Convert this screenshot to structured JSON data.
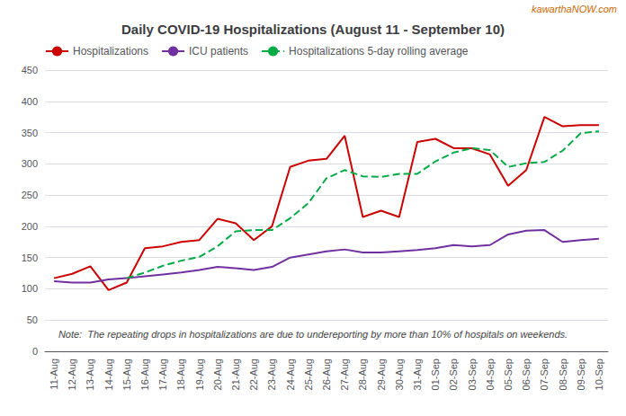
{
  "chart_data": {
    "type": "line",
    "title": "Daily COVID-19 Hospitalizations (August 11 - September 10)",
    "annotations": [
      "Note:  The repeating drops in hospitalizations are due to undereporting by more than 10% of hospitals on weekends.",
      "kawarthaNOW.com"
    ],
    "categories": [
      "11-Aug",
      "12-Aug",
      "13-Aug",
      "14-Aug",
      "15-Aug",
      "16-Aug",
      "17-Aug",
      "18-Aug",
      "19-Aug",
      "20-Aug",
      "21-Aug",
      "22-Aug",
      "23-Aug",
      "24-Aug",
      "25-Aug",
      "26-Aug",
      "27-Aug",
      "28-Aug",
      "29-Aug",
      "30-Aug",
      "31-Aug",
      "01-Sep",
      "02-Sep",
      "03-Sep",
      "04-Sep",
      "05-Sep",
      "06-Sep",
      "07-Sep",
      "08-Sep",
      "09-Sep",
      "10-Sep"
    ],
    "series": [
      {
        "name": "Hospitalizations",
        "color": "#cc0000",
        "line_style": "solid",
        "values": [
          117,
          124,
          136,
          98,
          110,
          165,
          168,
          175,
          178,
          212,
          205,
          178,
          200,
          295,
          305,
          308,
          345,
          215,
          225,
          215,
          335,
          340,
          325,
          325,
          315,
          265,
          290,
          375,
          360,
          362,
          362
        ]
      },
      {
        "name": "ICU patients",
        "color": "#7030a0",
        "line_style": "solid",
        "values": [
          112,
          110,
          110,
          115,
          117,
          120,
          123,
          126,
          130,
          135,
          133,
          130,
          135,
          150,
          155,
          160,
          163,
          158,
          158,
          160,
          162,
          165,
          170,
          168,
          170,
          187,
          193,
          194,
          175,
          178,
          180
        ]
      },
      {
        "name": "Hospitalizations 5-day rolling average",
        "color": "#00aa44",
        "line_style": "dashed",
        "values": [
          null,
          null,
          null,
          null,
          117,
          126,
          137,
          145,
          151,
          168,
          192,
          194,
          194,
          213,
          237,
          277,
          290,
          280,
          279,
          284,
          284,
          304,
          318,
          325,
          322,
          295,
          301,
          303,
          321,
          349,
          352
        ]
      }
    ],
    "ylim": [
      0,
      450
    ],
    "yticks": [
      0,
      50,
      100,
      150,
      200,
      250,
      300,
      350,
      400,
      450
    ],
    "grid": true,
    "legend": "upper left"
  }
}
